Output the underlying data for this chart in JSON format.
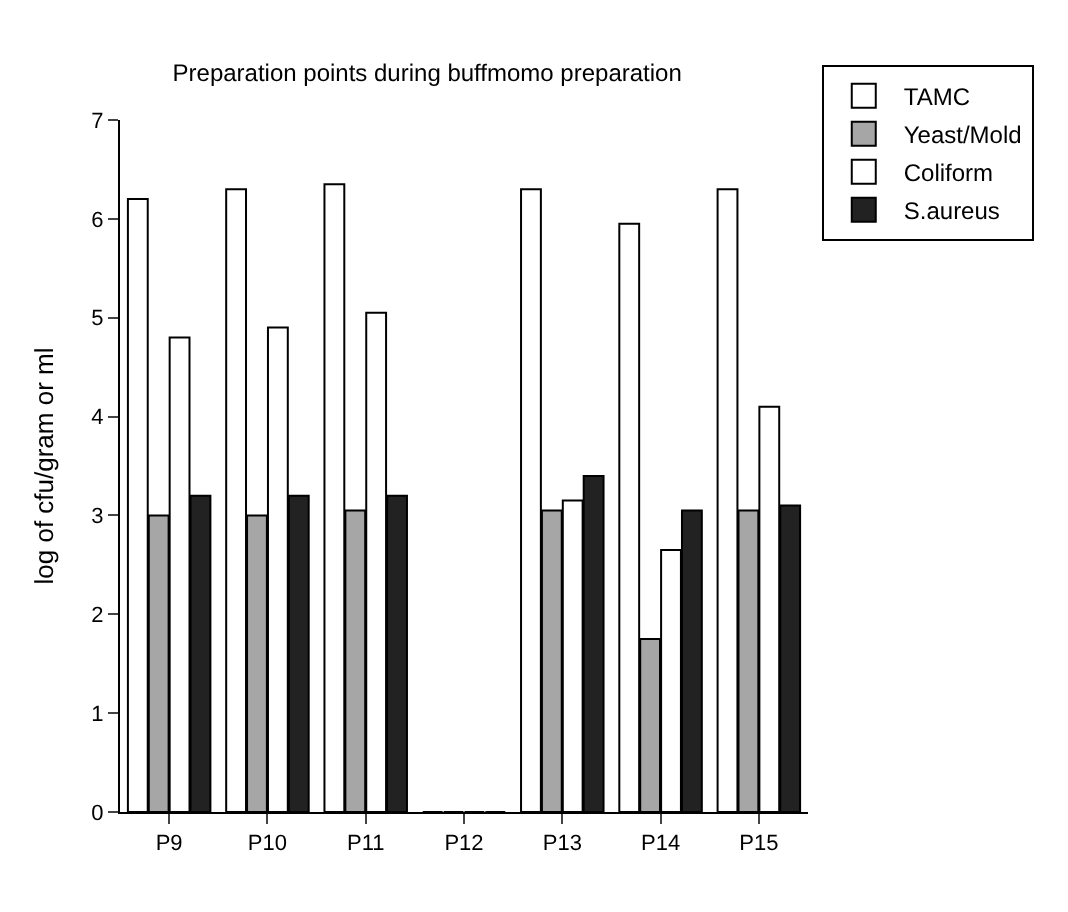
{
  "chart_data": {
    "type": "bar",
    "title": "Preparation points during buffmomo preparation",
    "ylabel": "log of cfu/gram or ml",
    "categories": [
      "P9",
      "P10",
      "P11",
      "P12",
      "P13",
      "P14",
      "P15"
    ],
    "series": [
      {
        "name": "TAMC",
        "color": "#ffffff",
        "values": [
          6.2,
          6.3,
          6.35,
          0,
          6.3,
          5.95,
          6.3
        ]
      },
      {
        "name": "Yeast/Mold",
        "color": "#a6a6a6",
        "values": [
          3.0,
          3.0,
          3.05,
          0,
          3.05,
          1.75,
          3.05
        ]
      },
      {
        "name": "Coliform",
        "color": "#ffffff",
        "values": [
          4.8,
          4.9,
          5.05,
          0,
          3.15,
          2.65,
          4.1
        ]
      },
      {
        "name": "S.aureus",
        "color": "#222222",
        "values": [
          3.2,
          3.2,
          3.2,
          0,
          3.4,
          3.05,
          3.1
        ]
      }
    ],
    "ylim": [
      0,
      7
    ],
    "yticks": [
      0,
      1,
      2,
      3,
      4,
      5,
      6,
      7
    ],
    "grid": false,
    "legend": "top right"
  }
}
